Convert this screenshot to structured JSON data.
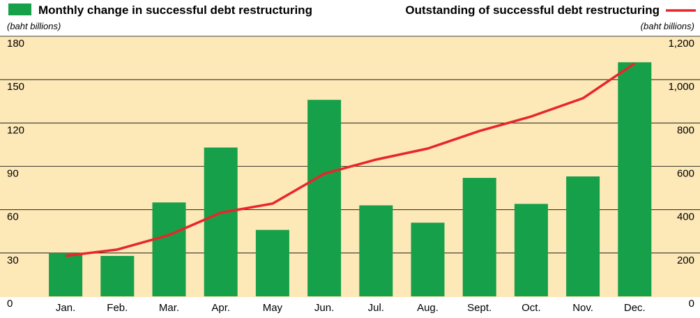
{
  "chart_data": {
    "type": "bar",
    "categories": [
      "Jan.",
      "Feb.",
      "Mar.",
      "Apr.",
      "May",
      "Jun.",
      "Jul.",
      "Aug.",
      "Sept.",
      "Oct.",
      "Nov.",
      "Dec."
    ],
    "series": [
      {
        "name": "Monthly change in successful debt restructuring",
        "type": "bar",
        "color": "#16a049",
        "values": [
          30,
          28,
          65,
          103,
          46,
          136,
          63,
          51,
          82,
          64,
          83,
          162
        ]
      },
      {
        "name": "Outstanding of successful debt restructuring",
        "type": "line",
        "axis": "y2",
        "color": "#e8262a",
        "values": [
          187,
          216,
          283,
          386,
          428,
          566,
          631,
          682,
          763,
          830,
          914,
          1075
        ]
      }
    ],
    "y_label": "(baht billions)",
    "y2_label": "(baht billions)",
    "ylim": [
      0,
      180
    ],
    "yticks": [
      0,
      30,
      60,
      90,
      120,
      150,
      180
    ],
    "y2lim": [
      0,
      1200
    ],
    "y2ticks": [
      0,
      200,
      400,
      600,
      800,
      {
        "value": 1000,
        "label": "1,000"
      },
      {
        "value": 1200,
        "label": "1,200"
      }
    ],
    "grid": true,
    "background": "#fde8b8"
  }
}
